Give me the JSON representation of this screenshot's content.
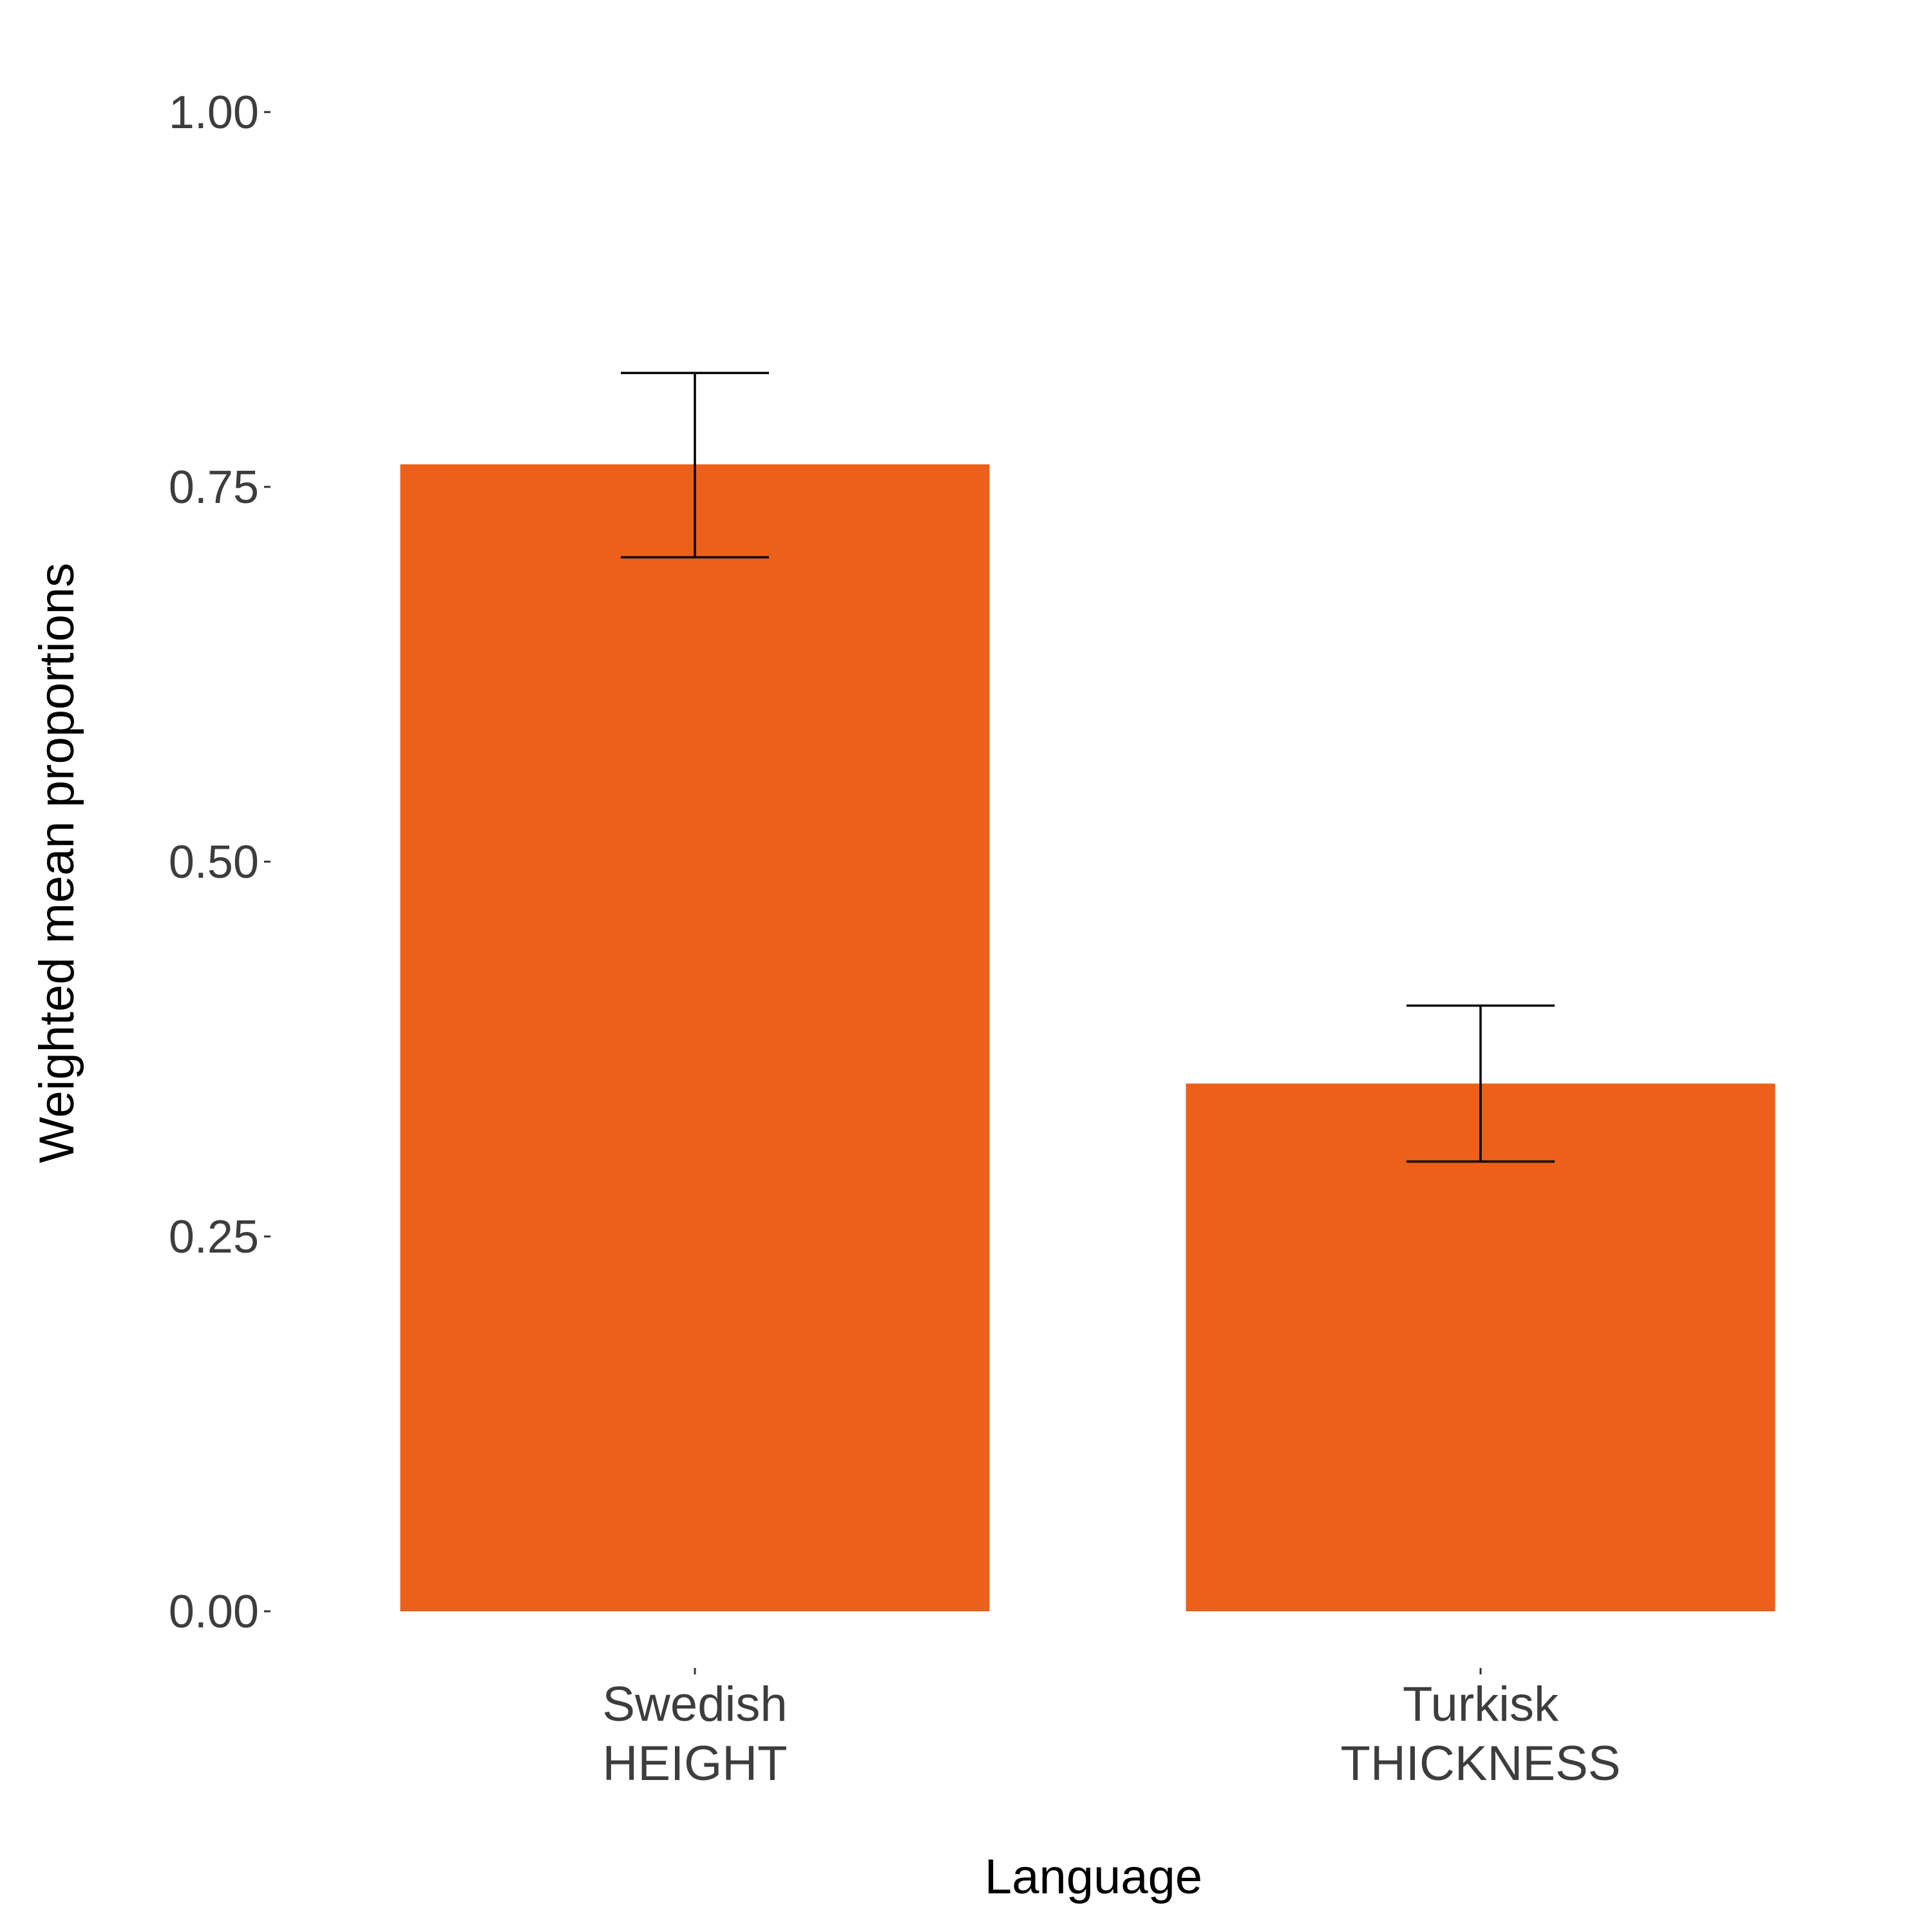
{
  "chart_data": {
    "type": "bar",
    "title": "",
    "xlabel": "Language",
    "ylabel": "Weighted mean proportions",
    "ylim": [
      0,
      1
    ],
    "yticks": [
      "0.00",
      "0.25",
      "0.50",
      "0.75",
      "1.00"
    ],
    "ytick_values": [
      0,
      0.25,
      0.5,
      0.75,
      1.0
    ],
    "categories": [
      [
        "Swedish",
        "HEIGHT"
      ],
      [
        "Turkisk",
        "THICKNESS"
      ]
    ],
    "values": [
      0.765,
      0.352
    ],
    "error_bars": [
      {
        "lower": 0.703,
        "upper": 0.826
      },
      {
        "lower": 0.3,
        "upper": 0.404
      }
    ],
    "bar_color": "#EC6019",
    "grid": false,
    "legend": "none"
  }
}
